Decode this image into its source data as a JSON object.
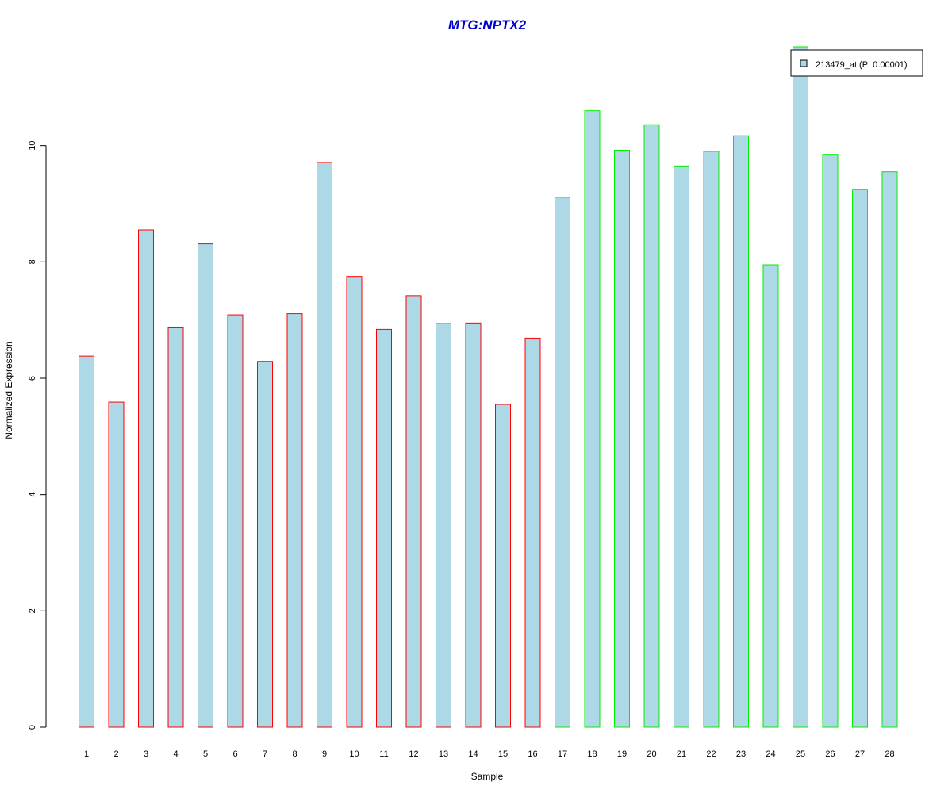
{
  "chart_data": {
    "type": "bar",
    "title": "MTG:NPTX2",
    "xlabel": "Sample",
    "ylabel": "Normalized Expression",
    "categories": [
      "1",
      "2",
      "3",
      "4",
      "5",
      "6",
      "7",
      "8",
      "9",
      "10",
      "11",
      "12",
      "13",
      "14",
      "15",
      "16",
      "17",
      "18",
      "19",
      "20",
      "21",
      "22",
      "23",
      "24",
      "25",
      "26",
      "27",
      "28"
    ],
    "series": [
      {
        "name": "213479_at (P: 0.00001)",
        "values": [
          6.38,
          5.59,
          8.55,
          6.88,
          8.31,
          7.09,
          6.29,
          7.11,
          9.71,
          7.75,
          6.84,
          7.42,
          6.94,
          6.95,
          5.55,
          6.69,
          9.11,
          10.6,
          9.92,
          10.36,
          9.65,
          9.9,
          10.17,
          7.95,
          11.7,
          9.85,
          9.25,
          9.55
        ]
      }
    ],
    "groups": [
      {
        "samples": [
          1,
          16
        ],
        "border_color": "#ff0000"
      },
      {
        "samples": [
          17,
          28
        ],
        "border_color": "#00ee00"
      }
    ],
    "fill_color": "#add8e6",
    "title_color": "#0000cd",
    "ylim": [
      0,
      11.7
    ],
    "yticks": [
      0,
      2,
      4,
      6,
      8,
      10
    ],
    "legend_position": "top-right",
    "grid": false
  }
}
